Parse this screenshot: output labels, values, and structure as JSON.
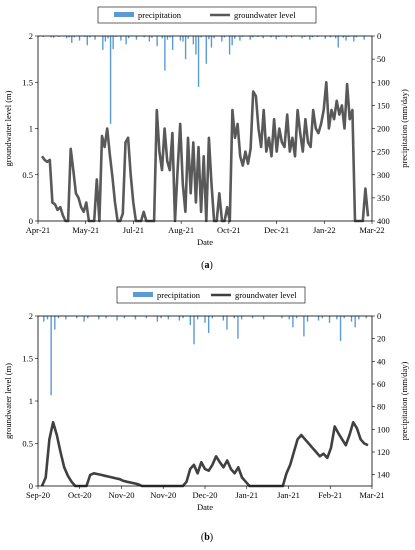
{
  "chart_data": [
    {
      "type": "line",
      "panel_label": "(a)",
      "panel_letter": "a",
      "legend": [
        {
          "name": "precipitation",
          "color": "#5b9bd5"
        },
        {
          "name": "groundwater level",
          "color": "#595959"
        }
      ],
      "legend_placement": "top-center",
      "xlabel": "Date",
      "ylabel": "groundwater level (m)",
      "y2label": "precipitation (mm/day)",
      "ylim": [
        0,
        2
      ],
      "y2lim": [
        400,
        0
      ],
      "yticks": [
        "0",
        "0.5",
        "1",
        "1.5",
        "2"
      ],
      "y2ticks": [
        "400",
        "350",
        "300",
        "250",
        "200",
        "150",
        "100",
        "50",
        "0"
      ],
      "xticks": [
        "Apr-21",
        "May-21",
        "Jul-21",
        "Aug-21",
        "Oct-21",
        "Dec-21",
        "Jan-22",
        "Mar-22"
      ],
      "grid": false,
      "series": [
        {
          "name": "groundwater level",
          "color": "#595959",
          "values": [
            0.7,
            0.66,
            0.64,
            0.66,
            0.2,
            0.18,
            0.12,
            0.15,
            0.06,
            0.0,
            0.0,
            0.78,
            0.55,
            0.3,
            0.25,
            0.15,
            0.1,
            0.2,
            0.0,
            0.0,
            0.0,
            0.45,
            0.0,
            0.92,
            0.8,
            1.0,
            0.72,
            0.48,
            0.2,
            0.0,
            0.0,
            0.08,
            0.85,
            0.9,
            0.5,
            0.2,
            0.0,
            0.0,
            0.0,
            0.1,
            0.0,
            0.0,
            0.0,
            0.0,
            1.2,
            0.75,
            0.55,
            1.0,
            0.65,
            0.55,
            0.95,
            0.0,
            0.55,
            1.05,
            0.4,
            0.1,
            0.9,
            0.3,
            0.85,
            0.2,
            0.8,
            0.1,
            0.7,
            0.0,
            0.9,
            0.4,
            0.0,
            0.0,
            0.3,
            0.0,
            0.0,
            0.15,
            0.0,
            1.2,
            0.9,
            1.05,
            0.7,
            0.6,
            0.75,
            0.62,
            0.78,
            1.4,
            1.35,
            1.0,
            0.8,
            1.2,
            0.75,
            0.9,
            0.7,
            1.1,
            0.75,
            1.0,
            0.85,
            0.8,
            1.15,
            0.75,
            0.9,
            0.7,
            1.2,
            0.95,
            0.75,
            1.1,
            0.85,
            0.8,
            1.2,
            1.0,
            0.95,
            1.05,
            1.2,
            1.5,
            1.0,
            1.2,
            1.1,
            1.3,
            1.15,
            1.25,
            1.0,
            1.48,
            1.1,
            1.2,
            0.0,
            0.0,
            0.0,
            0.0,
            0.35,
            0.05
          ]
        },
        {
          "name": "precipitation",
          "color": "#5b9bd5",
          "values": [
            2,
            0,
            0,
            3,
            4,
            0,
            2,
            0,
            0,
            5,
            3,
            15,
            3,
            0,
            10,
            0,
            2,
            20,
            3,
            0,
            8,
            0,
            0,
            30,
            12,
            5,
            190,
            28,
            2,
            0,
            10,
            0,
            18,
            5,
            0,
            0,
            8,
            0,
            0,
            3,
            0,
            12,
            4,
            0,
            22,
            0,
            5,
            75,
            8,
            3,
            30,
            0,
            0,
            10,
            12,
            50,
            6,
            0,
            18,
            40,
            110,
            3,
            0,
            60,
            7,
            25,
            5,
            0,
            0,
            12,
            3,
            0,
            40,
            20,
            6,
            0,
            10,
            2,
            0,
            0,
            8,
            3,
            0,
            2,
            0,
            5,
            0,
            0,
            3,
            0,
            7,
            2,
            0,
            0,
            4,
            0,
            3,
            0,
            0,
            0,
            5,
            2,
            0,
            8,
            3,
            0,
            2,
            0,
            0,
            6,
            0,
            3,
            0,
            5,
            25,
            0,
            4,
            10,
            2,
            0,
            12,
            3,
            0,
            0,
            8,
            0
          ]
        }
      ]
    },
    {
      "type": "line",
      "panel_label": "(b)",
      "panel_letter": "b",
      "legend": [
        {
          "name": "precipitation",
          "color": "#5b9bd5"
        },
        {
          "name": "groundwater level",
          "color": "#404040"
        }
      ],
      "legend_placement": "top-center",
      "xlabel": "Date",
      "ylabel": "groundwater level (m)",
      "y2label": "precipitation (mm/day)",
      "ylim": [
        0,
        2
      ],
      "y2lim": [
        150,
        0
      ],
      "yticks": [
        "0",
        "0.5",
        "1",
        "1.5",
        "2"
      ],
      "y2ticks": [
        "140",
        "120",
        "100",
        "80",
        "60",
        "40",
        "20",
        "0"
      ],
      "xticks": [
        "Sep-20",
        "Oct-20",
        "Nov-20",
        "Nov-20",
        "Dec-20",
        "Jan-21",
        "Jan-21",
        "Feb-21",
        "Mar-21"
      ],
      "grid": false,
      "series": [
        {
          "name": "groundwater level",
          "color": "#404040",
          "values": [
            0.0,
            0.1,
            0.55,
            0.75,
            0.6,
            0.4,
            0.22,
            0.12,
            0.05,
            0.0,
            0.0,
            0.0,
            0.0,
            0.13,
            0.15,
            0.14,
            0.13,
            0.12,
            0.11,
            0.1,
            0.09,
            0.08,
            0.06,
            0.05,
            0.04,
            0.03,
            0.02,
            0.0,
            0.0,
            0.0,
            0.0,
            0.0,
            0.0,
            0.0,
            0.0,
            0.0,
            0.0,
            0.0,
            0.0,
            0.05,
            0.2,
            0.25,
            0.15,
            0.28,
            0.2,
            0.18,
            0.25,
            0.35,
            0.28,
            0.22,
            0.3,
            0.2,
            0.15,
            0.22,
            0.1,
            0.05,
            0.0,
            0.0,
            0.0,
            0.0,
            0.0,
            0.0,
            0.0,
            0.0,
            0.0,
            0.0,
            0.15,
            0.25,
            0.4,
            0.55,
            0.6,
            0.55,
            0.5,
            0.45,
            0.4,
            0.35,
            0.38,
            0.33,
            0.45,
            0.7,
            0.62,
            0.55,
            0.48,
            0.6,
            0.75,
            0.68,
            0.55,
            0.5,
            0.48
          ]
        },
        {
          "name": "precipitation",
          "color": "#5b9bd5",
          "values": [
            5,
            3,
            70,
            12,
            2,
            0,
            3,
            0,
            0,
            2,
            0,
            5,
            2,
            0,
            0,
            3,
            0,
            2,
            0,
            0,
            4,
            0,
            2,
            0,
            0,
            3,
            0,
            0,
            2,
            0,
            0,
            5,
            2,
            0,
            3,
            0,
            0,
            4,
            2,
            0,
            8,
            25,
            3,
            0,
            6,
            15,
            2,
            0,
            0,
            4,
            12,
            0,
            2,
            20,
            3,
            0,
            0,
            2,
            0,
            0,
            3,
            0,
            0,
            0,
            0,
            2,
            0,
            3,
            10,
            2,
            0,
            18,
            5,
            0,
            0,
            4,
            2,
            0,
            6,
            0,
            3,
            22,
            2,
            0,
            5,
            10,
            3,
            0,
            2
          ]
        }
      ]
    }
  ]
}
